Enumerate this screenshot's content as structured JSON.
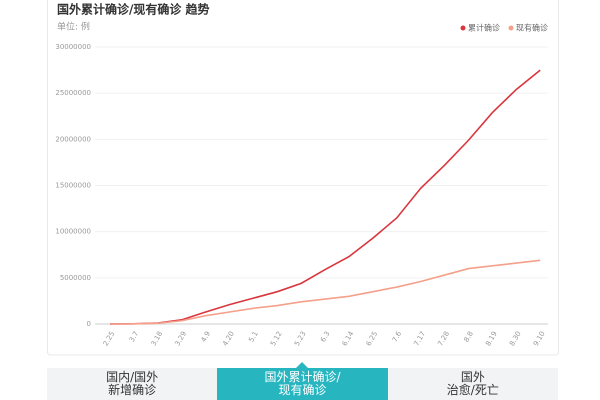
{
  "chart_data": {
    "type": "line",
    "title": "国外累计确诊/现有确诊 趋势",
    "unit": "单位: 例",
    "categories": [
      "2.25",
      "3.7",
      "3.18",
      "3.29",
      "4.9",
      "4.20",
      "5.1",
      "5.12",
      "5.23",
      "6.3",
      "6.14",
      "6.25",
      "7.6",
      "7.17",
      "7.28",
      "8.8",
      "8.19",
      "8.30",
      "9.10"
    ],
    "series": [
      {
        "name": "累计确诊",
        "color": "#d9363e",
        "values": [
          3000,
          20000,
          100000,
          450000,
          1300000,
          2100000,
          2800000,
          3500000,
          4400000,
          5900000,
          7300000,
          9300000,
          11500000,
          14700000,
          17200000,
          19900000,
          22900000,
          25400000,
          27500000
        ]
      },
      {
        "name": "现有确诊",
        "color": "#f4a08a",
        "values": [
          2000,
          15000,
          80000,
          350000,
          900000,
          1300000,
          1700000,
          2000000,
          2400000,
          2700000,
          3000000,
          3500000,
          4000000,
          4600000,
          5300000,
          6000000,
          6300000,
          6600000,
          6900000
        ]
      }
    ],
    "ylim": [
      0,
      30000000
    ],
    "yticks": [
      0,
      5000000,
      10000000,
      15000000,
      20000000,
      25000000,
      30000000
    ],
    "grid": true,
    "legend": "top-right"
  },
  "tabs": [
    {
      "lines": [
        "国内/国外",
        "新增确诊"
      ],
      "active": false
    },
    {
      "lines": [
        "国外累计确诊/",
        "现有确诊"
      ],
      "active": true
    },
    {
      "lines": [
        "国外",
        "治愈/死亡"
      ],
      "active": false
    }
  ]
}
